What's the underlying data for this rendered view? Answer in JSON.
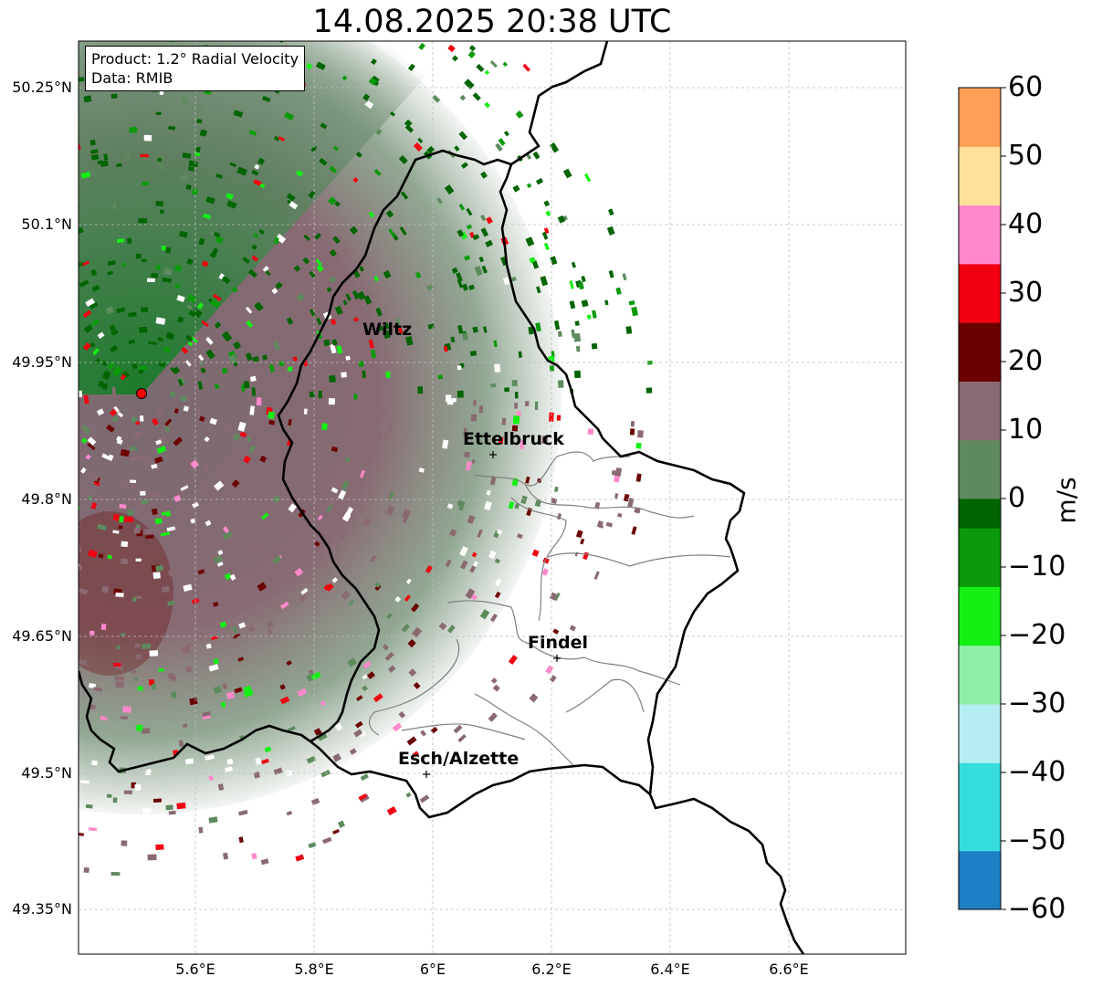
{
  "title": "14.08.2025 20:38 UTC",
  "info": {
    "product": "Product: 1.2° Radial Velocity",
    "data": "Data: RMIB"
  },
  "lat_ticks": [
    "50.25°N",
    "50.1°N",
    "49.95°N",
    "49.8°N",
    "49.65°N",
    "49.5°N",
    "49.35°N"
  ],
  "lon_ticks": [
    "5.6°E",
    "5.8°E",
    "6°E",
    "6.2°E",
    "6.4°E",
    "6.6°E"
  ],
  "cities": [
    {
      "name": "Wiltz"
    },
    {
      "name": "Ettelbruck"
    },
    {
      "name": "Findel"
    },
    {
      "name": "Esch/Alzette"
    }
  ],
  "colorbar": {
    "label": "m/s",
    "min": -60,
    "max": 60,
    "ticks": [
      "60",
      "50",
      "40",
      "30",
      "20",
      "10",
      "0",
      "−10",
      "−20",
      "−30",
      "−40",
      "−50",
      "−60"
    ],
    "colors": {
      "very_negative": "#1f7fc4",
      "neg_cyan": "#35dede",
      "neg_light_cyan": "#b4eef0",
      "neg_light_green": "#8ef0a8",
      "neg_bright_green": "#14f014",
      "neg_green": "#0a9a0a",
      "neg_dark_green": "#006400",
      "near_zero_green": "#5f8a5f",
      "near_zero_mauve": "#8a6a72",
      "pos_dark_red": "#6b0000",
      "pos_red": "#f00010",
      "pos_pink": "#ff88cc",
      "pos_peach": "#ffe19a",
      "very_positive": "#ff9e55"
    }
  }
}
